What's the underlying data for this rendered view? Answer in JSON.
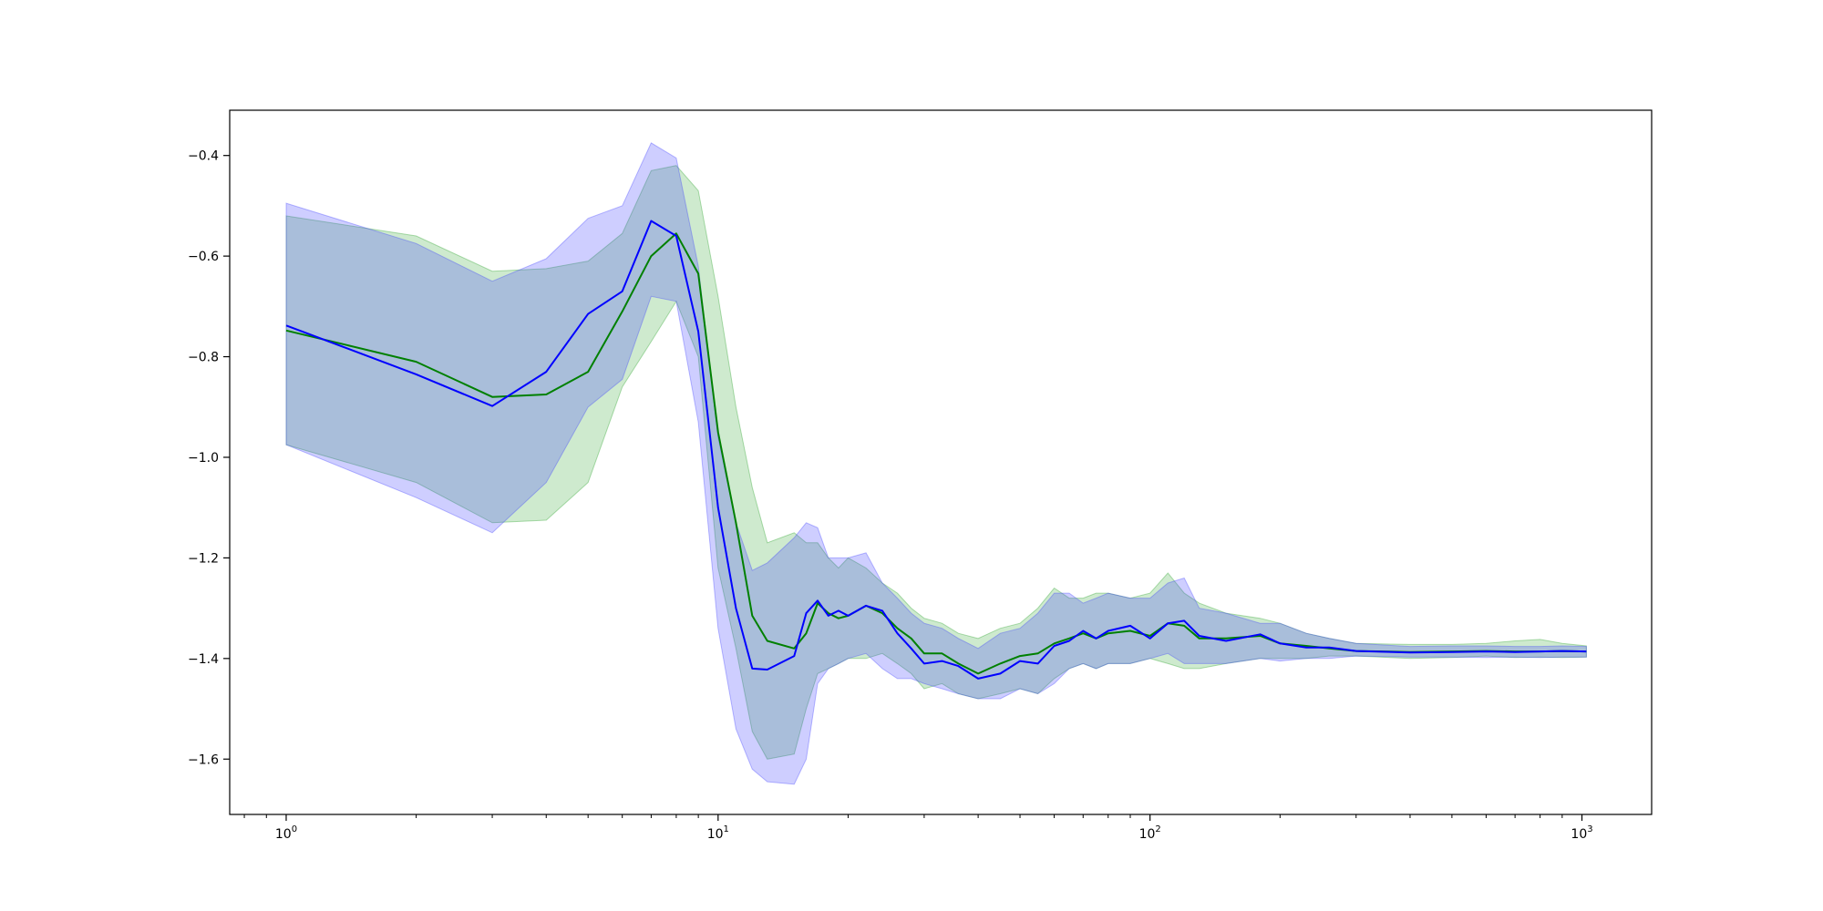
{
  "chart_data": {
    "type": "line",
    "title": "",
    "xlabel": "",
    "ylabel": "",
    "x_scale": "log",
    "xlim": [
      0.74,
      1450
    ],
    "ylim": [
      -1.71,
      -0.31
    ],
    "grid": false,
    "legend": "none",
    "x_ticks": [
      {
        "value": 1,
        "base": "10",
        "exp": "0"
      },
      {
        "value": 10,
        "base": "10",
        "exp": "1"
      },
      {
        "value": 100,
        "base": "10",
        "exp": "2"
      },
      {
        "value": 1000,
        "base": "10",
        "exp": "3"
      }
    ],
    "y_ticks": [
      {
        "value": -0.4,
        "label": "−0.4"
      },
      {
        "value": -0.6,
        "label": "−0.6"
      },
      {
        "value": -0.8,
        "label": "−0.8"
      },
      {
        "value": -1.0,
        "label": "−1.0"
      },
      {
        "value": -1.2,
        "label": "−1.2"
      },
      {
        "value": -1.4,
        "label": "−1.4"
      },
      {
        "value": -1.6,
        "label": "−1.6"
      }
    ],
    "series": [
      {
        "color": "#008000",
        "band_color": "#1f9e1f",
        "band_opacity": 0.22,
        "x": [
          1,
          2,
          3,
          4,
          5,
          6,
          7,
          8,
          9,
          10,
          11,
          12,
          13,
          15,
          16,
          17,
          18,
          19,
          20,
          22,
          24,
          26,
          28,
          30,
          33,
          36,
          40,
          45,
          50,
          55,
          60,
          65,
          70,
          75,
          80,
          90,
          100,
          110,
          120,
          130,
          150,
          180,
          200,
          230,
          260,
          300,
          400,
          500,
          600,
          700,
          800,
          900,
          1024
        ],
        "y": [
          -0.748,
          -0.81,
          -0.88,
          -0.875,
          -0.83,
          -0.71,
          -0.6,
          -0.555,
          -0.635,
          -0.95,
          -1.13,
          -1.315,
          -1.365,
          -1.38,
          -1.35,
          -1.29,
          -1.31,
          -1.32,
          -1.315,
          -1.295,
          -1.31,
          -1.34,
          -1.36,
          -1.39,
          -1.39,
          -1.41,
          -1.43,
          -1.41,
          -1.395,
          -1.39,
          -1.37,
          -1.36,
          -1.35,
          -1.36,
          -1.35,
          -1.345,
          -1.355,
          -1.33,
          -1.335,
          -1.36,
          -1.36,
          -1.355,
          -1.37,
          -1.375,
          -1.38,
          -1.385,
          -1.387,
          -1.386,
          -1.385,
          -1.386,
          -1.386,
          -1.385,
          -1.386
        ],
        "upper": [
          -0.52,
          -0.56,
          -0.63,
          -0.625,
          -0.61,
          -0.555,
          -0.43,
          -0.42,
          -0.47,
          -0.68,
          -0.9,
          -1.06,
          -1.17,
          -1.15,
          -1.17,
          -1.17,
          -1.2,
          -1.22,
          -1.2,
          -1.22,
          -1.25,
          -1.27,
          -1.3,
          -1.32,
          -1.33,
          -1.35,
          -1.36,
          -1.34,
          -1.33,
          -1.3,
          -1.26,
          -1.28,
          -1.28,
          -1.27,
          -1.27,
          -1.28,
          -1.27,
          -1.23,
          -1.27,
          -1.29,
          -1.31,
          -1.32,
          -1.33,
          -1.35,
          -1.36,
          -1.37,
          -1.372,
          -1.372,
          -1.37,
          -1.365,
          -1.362,
          -1.37,
          -1.375
        ],
        "lower": [
          -0.975,
          -1.05,
          -1.13,
          -1.125,
          -1.05,
          -0.86,
          -0.77,
          -0.69,
          -0.8,
          -1.22,
          -1.38,
          -1.545,
          -1.6,
          -1.59,
          -1.5,
          -1.43,
          -1.42,
          -1.41,
          -1.4,
          -1.4,
          -1.39,
          -1.41,
          -1.43,
          -1.46,
          -1.45,
          -1.47,
          -1.48,
          -1.47,
          -1.46,
          -1.47,
          -1.44,
          -1.42,
          -1.41,
          -1.42,
          -1.41,
          -1.41,
          -1.4,
          -1.41,
          -1.42,
          -1.42,
          -1.41,
          -1.4,
          -1.4,
          -1.4,
          -1.395,
          -1.395,
          -1.4,
          -1.398,
          -1.395,
          -1.398,
          -1.397,
          -1.398,
          -1.397
        ]
      },
      {
        "color": "#0000ff",
        "band_color": "#3c3cff",
        "band_opacity": 0.25,
        "x": [
          1,
          2,
          3,
          4,
          5,
          6,
          7,
          8,
          9,
          10,
          11,
          12,
          13,
          15,
          16,
          17,
          18,
          19,
          20,
          22,
          24,
          26,
          28,
          30,
          33,
          36,
          40,
          45,
          50,
          55,
          60,
          65,
          70,
          75,
          80,
          90,
          100,
          110,
          120,
          130,
          150,
          180,
          200,
          230,
          260,
          300,
          400,
          500,
          600,
          700,
          800,
          900,
          1024
        ],
        "y": [
          -0.738,
          -0.835,
          -0.898,
          -0.83,
          -0.715,
          -0.67,
          -0.53,
          -0.56,
          -0.75,
          -1.1,
          -1.3,
          -1.42,
          -1.422,
          -1.395,
          -1.31,
          -1.285,
          -1.315,
          -1.305,
          -1.315,
          -1.295,
          -1.305,
          -1.35,
          -1.38,
          -1.41,
          -1.405,
          -1.415,
          -1.44,
          -1.43,
          -1.405,
          -1.41,
          -1.375,
          -1.365,
          -1.345,
          -1.36,
          -1.345,
          -1.335,
          -1.36,
          -1.33,
          -1.325,
          -1.355,
          -1.365,
          -1.352,
          -1.37,
          -1.378,
          -1.378,
          -1.385,
          -1.388,
          -1.387,
          -1.386,
          -1.387,
          -1.386,
          -1.385,
          -1.386
        ],
        "upper": [
          -0.495,
          -0.575,
          -0.65,
          -0.605,
          -0.525,
          -0.5,
          -0.375,
          -0.405,
          -0.62,
          -0.96,
          -1.13,
          -1.225,
          -1.21,
          -1.16,
          -1.13,
          -1.14,
          -1.2,
          -1.2,
          -1.2,
          -1.19,
          -1.25,
          -1.28,
          -1.31,
          -1.33,
          -1.34,
          -1.36,
          -1.38,
          -1.35,
          -1.34,
          -1.31,
          -1.27,
          -1.27,
          -1.29,
          -1.28,
          -1.27,
          -1.28,
          -1.28,
          -1.25,
          -1.24,
          -1.3,
          -1.31,
          -1.33,
          -1.33,
          -1.35,
          -1.36,
          -1.37,
          -1.376,
          -1.375,
          -1.375,
          -1.376,
          -1.376,
          -1.375,
          -1.376
        ],
        "lower": [
          -0.975,
          -1.08,
          -1.15,
          -1.05,
          -0.9,
          -0.845,
          -0.68,
          -0.69,
          -0.93,
          -1.34,
          -1.54,
          -1.62,
          -1.645,
          -1.65,
          -1.6,
          -1.45,
          -1.42,
          -1.41,
          -1.4,
          -1.39,
          -1.42,
          -1.44,
          -1.44,
          -1.45,
          -1.46,
          -1.47,
          -1.48,
          -1.48,
          -1.46,
          -1.47,
          -1.45,
          -1.42,
          -1.41,
          -1.42,
          -1.41,
          -1.41,
          -1.4,
          -1.39,
          -1.41,
          -1.41,
          -1.41,
          -1.4,
          -1.405,
          -1.4,
          -1.4,
          -1.395,
          -1.397,
          -1.397,
          -1.398,
          -1.397,
          -1.398,
          -1.397,
          -1.397
        ]
      }
    ]
  }
}
